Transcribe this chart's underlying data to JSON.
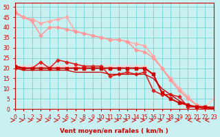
{
  "bg_color": "#c8f0f0",
  "grid_color": "#80d8d8",
  "xlabel": "Vent moyen/en rafales ( km/h )",
  "xlabel_color": "#cc0000",
  "tick_color": "#cc0000",
  "xlim": [
    0,
    23
  ],
  "ylim": [
    0,
    52
  ],
  "yticks": [
    0,
    5,
    10,
    15,
    20,
    25,
    30,
    35,
    40,
    45,
    50
  ],
  "xticks": [
    0,
    1,
    2,
    3,
    4,
    5,
    6,
    7,
    8,
    9,
    10,
    11,
    12,
    13,
    14,
    15,
    16,
    17,
    18,
    19,
    20,
    21,
    22,
    23
  ],
  "lines": [
    {
      "x": [
        0,
        1,
        2,
        3,
        4,
        5,
        6,
        7,
        8,
        9,
        10,
        11,
        12,
        13,
        14,
        15,
        16,
        17,
        18,
        19,
        20,
        21,
        22,
        23
      ],
      "y": [
        48,
        45,
        44,
        42,
        43,
        44,
        45,
        38,
        37,
        36,
        35,
        34,
        34,
        33,
        32,
        31,
        26,
        20,
        15,
        10,
        6,
        2,
        1,
        0
      ],
      "color": "#ffaaaa",
      "lw": 1.2,
      "marker": "D",
      "ms": 2.5,
      "zorder": 2,
      "ls": "-"
    },
    {
      "x": [
        0,
        1,
        2,
        3,
        4,
        5,
        6,
        7,
        8,
        9,
        10,
        11,
        12,
        13,
        14,
        15,
        16,
        17,
        18,
        19,
        20,
        21,
        22,
        23
      ],
      "y": [
        47,
        45,
        43,
        36,
        40,
        40,
        39,
        38,
        37,
        36,
        35,
        34,
        34,
        33,
        29,
        28,
        25,
        20,
        14,
        9,
        5,
        2,
        1,
        0
      ],
      "color": "#ff9999",
      "lw": 1.2,
      "marker": "D",
      "ms": 2.5,
      "zorder": 2,
      "ls": "-"
    },
    {
      "x": [
        0,
        1,
        2,
        3,
        4,
        5,
        6,
        7,
        8,
        9,
        10,
        11,
        12,
        13,
        14,
        15,
        16,
        17,
        18,
        19,
        20,
        21,
        22,
        23
      ],
      "y": [
        21,
        20,
        20,
        20,
        20,
        20,
        20,
        20,
        20,
        20,
        20,
        20,
        20,
        20,
        20,
        20,
        17,
        8,
        5,
        3,
        2,
        1,
        1,
        0
      ],
      "color": "#cc0000",
      "lw": 1.5,
      "marker": "s",
      "ms": 3,
      "zorder": 4,
      "ls": "-"
    },
    {
      "x": [
        0,
        1,
        2,
        3,
        4,
        5,
        6,
        7,
        8,
        9,
        10,
        11,
        12,
        13,
        14,
        15,
        16,
        17,
        18,
        19,
        20,
        21,
        22,
        23
      ],
      "y": [
        20,
        20,
        20,
        23,
        20,
        24,
        23,
        22,
        21,
        21,
        21,
        16,
        17,
        18,
        17,
        18,
        9,
        7,
        7,
        6,
        1,
        1,
        0,
        0
      ],
      "color": "#dd2222",
      "lw": 1.2,
      "marker": "D",
      "ms": 2.5,
      "zorder": 3,
      "ls": "-"
    },
    {
      "x": [
        0,
        1,
        2,
        3,
        4,
        5,
        6,
        7,
        8,
        9,
        10,
        11,
        12,
        13,
        14,
        15,
        16,
        17,
        18,
        19,
        20,
        21,
        22,
        23
      ],
      "y": [
        21,
        21,
        21,
        21,
        21,
        21,
        21,
        21,
        21,
        21,
        21,
        21,
        21,
        21,
        21,
        21,
        16,
        8,
        5,
        3,
        1,
        1,
        1,
        5
      ],
      "color": "#ffcccc",
      "lw": 1.2,
      "marker": "D",
      "ms": 2.5,
      "zorder": 2,
      "ls": "-"
    },
    {
      "x": [
        0,
        1,
        2,
        3,
        4,
        5,
        6,
        7,
        8,
        9,
        10,
        11,
        12,
        13,
        14,
        15,
        16,
        17,
        18,
        19,
        20,
        21,
        22,
        23
      ],
      "y": [
        20,
        19,
        19,
        19,
        19,
        19,
        19,
        18,
        18,
        18,
        18,
        17,
        17,
        17,
        17,
        17,
        15,
        10,
        7,
        4,
        2,
        1,
        1,
        1
      ],
      "color": "#cc0000",
      "lw": 1.0,
      "marker": null,
      "ms": 0,
      "zorder": 3,
      "ls": "-"
    }
  ],
  "arrows_x": [
    0,
    1,
    2,
    3,
    4,
    5,
    6,
    7,
    8,
    9,
    10,
    11,
    12,
    13,
    14,
    15,
    16,
    17,
    18,
    19,
    20,
    21,
    22
  ],
  "arrows_dir": [
    1,
    1,
    1,
    1,
    1,
    1,
    1,
    1,
    1,
    1,
    1,
    1,
    1,
    1,
    1,
    1,
    1,
    1,
    1,
    1,
    -1,
    -1,
    -1
  ]
}
